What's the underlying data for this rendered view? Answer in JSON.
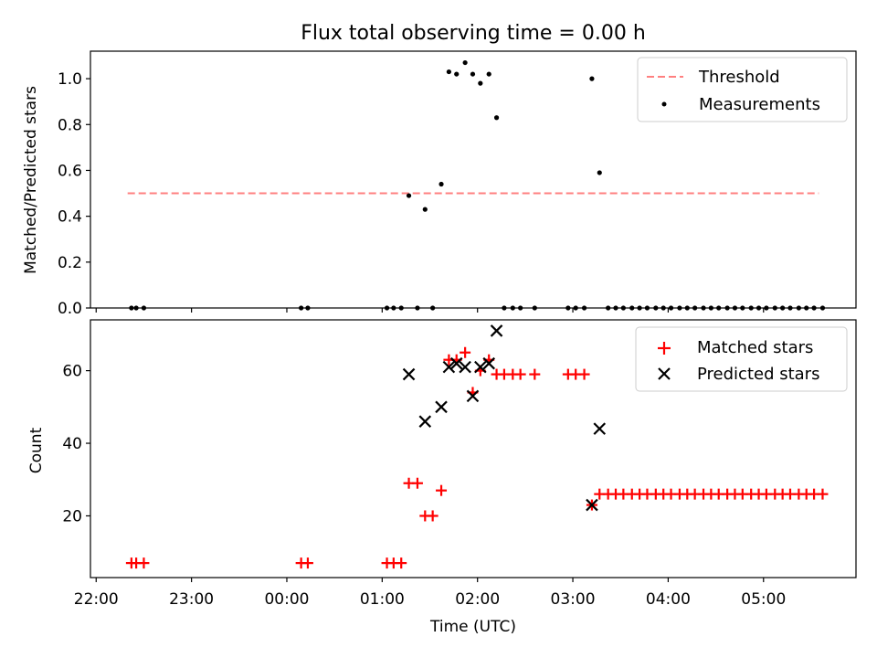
{
  "title": "Flux total observing time = 0.00 h",
  "chart_data": [
    {
      "type": "scatter",
      "ylabel": "Matched/Predicted stars",
      "ylim": [
        0,
        1.12
      ],
      "yticks": [
        0.0,
        0.2,
        0.4,
        0.6,
        0.8,
        1.0
      ],
      "ytick_labels": [
        "0.0",
        "0.2",
        "0.4",
        "0.6",
        "0.8",
        "1.0"
      ],
      "legend_position": "top-right",
      "threshold": {
        "name": "Threshold",
        "value": 0.5,
        "x_range": [
          22.33,
          29.58
        ],
        "color": "#ff8080"
      },
      "measurements": {
        "name": "Measurements",
        "color": "#000000",
        "x": [
          22.37,
          22.42,
          22.5,
          24.15,
          24.22,
          25.05,
          25.12,
          25.2,
          25.28,
          25.37,
          25.45,
          25.53,
          25.62,
          25.7,
          25.78,
          25.87,
          25.95,
          26.03,
          26.12,
          26.2,
          26.28,
          26.37,
          26.45,
          26.6,
          26.95,
          27.03,
          27.12,
          27.2,
          27.28,
          27.37,
          27.45,
          27.53,
          27.62,
          27.7,
          27.78,
          27.87,
          27.95,
          28.03,
          28.12,
          28.2,
          28.28,
          28.37,
          28.45,
          28.53,
          28.62,
          28.7,
          28.78,
          28.87,
          28.95,
          29.03,
          29.12,
          29.2,
          29.28,
          29.37,
          29.45,
          29.53,
          29.62
        ],
        "y": [
          0,
          0,
          0,
          0,
          0,
          0,
          0,
          0,
          0.49,
          0,
          0.43,
          0,
          0.54,
          1.03,
          1.02,
          1.07,
          1.02,
          0.98,
          1.02,
          0.83,
          0,
          0,
          0,
          0,
          0,
          0,
          0,
          1.0,
          0.59,
          0,
          0,
          0,
          0,
          0,
          0,
          0,
          0,
          0,
          0,
          0,
          0,
          0,
          0,
          0,
          0,
          0,
          0,
          0,
          0,
          0,
          0,
          0,
          0,
          0,
          0,
          0,
          0
        ]
      }
    },
    {
      "type": "scatter",
      "xlabel": "Time (UTC)",
      "ylabel": "Count",
      "ylim": [
        3,
        74
      ],
      "yticks": [
        20,
        40,
        60
      ],
      "ytick_labels": [
        "20",
        "40",
        "60"
      ],
      "xlim": [
        21.94,
        29.97
      ],
      "xticks": [
        22,
        23,
        24,
        25,
        26,
        27,
        28,
        29
      ],
      "xtick_labels": [
        "22:00",
        "23:00",
        "00:00",
        "01:00",
        "02:00",
        "03:00",
        "04:00",
        "05:00"
      ],
      "legend_position": "top-right",
      "series": [
        {
          "name": "Matched stars",
          "marker": "plus",
          "color": "#ff0000",
          "x": [
            22.37,
            22.42,
            22.5,
            24.15,
            24.22,
            25.05,
            25.12,
            25.2,
            25.28,
            25.37,
            25.45,
            25.53,
            25.62,
            25.7,
            25.78,
            25.87,
            25.95,
            26.03,
            26.12,
            26.2,
            26.28,
            26.37,
            26.45,
            26.6,
            26.95,
            27.03,
            27.12,
            27.2,
            27.28,
            27.37,
            27.45,
            27.53,
            27.62,
            27.7,
            27.78,
            27.87,
            27.95,
            28.03,
            28.12,
            28.2,
            28.28,
            28.37,
            28.45,
            28.53,
            28.62,
            28.7,
            28.78,
            28.87,
            28.95,
            29.03,
            29.12,
            29.2,
            29.28,
            29.37,
            29.45,
            29.53,
            29.62
          ],
          "y": [
            7,
            7,
            7,
            7,
            7,
            7,
            7,
            7,
            29,
            29,
            20,
            20,
            27,
            63,
            63,
            65,
            54,
            60,
            63,
            59,
            59,
            59,
            59,
            59,
            59,
            59,
            59,
            23,
            26,
            26,
            26,
            26,
            26,
            26,
            26,
            26,
            26,
            26,
            26,
            26,
            26,
            26,
            26,
            26,
            26,
            26,
            26,
            26,
            26,
            26,
            26,
            26,
            26,
            26,
            26,
            26,
            26
          ]
        },
        {
          "name": "Predicted stars",
          "marker": "x",
          "color": "#000000",
          "x": [
            25.28,
            25.45,
            25.62,
            25.7,
            25.78,
            25.87,
            25.95,
            26.03,
            26.12,
            26.2,
            27.2,
            27.28
          ],
          "y": [
            59,
            46,
            50,
            61,
            62,
            61,
            53,
            61,
            62,
            71,
            23,
            44
          ]
        }
      ]
    }
  ]
}
